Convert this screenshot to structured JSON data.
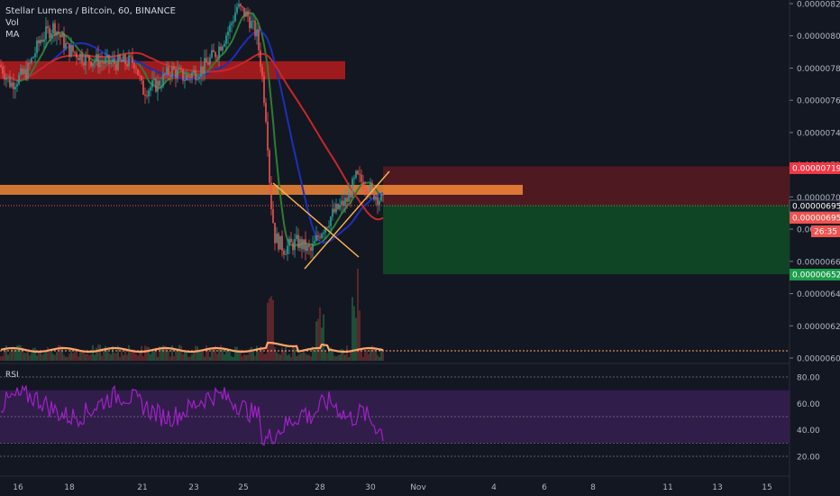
{
  "legend": {
    "title": "Stellar Lumens / Bitcoin, 60, BINANCE",
    "indicator_vol": "Vol",
    "indicator_ma": "MA",
    "rsi_label": "RSI"
  },
  "colors": {
    "background": "#131722",
    "candle_up": "#26a69a",
    "candle_down": "#ef5350",
    "ma_fast": "#2e7d32",
    "ma_mid": "#1e2fb8",
    "ma_slow": "#c62828",
    "resistance_zone": "#b71c1c",
    "support_zone": "#ff8f3a",
    "stop_zone": "#5a1a22",
    "target_zone": "#0f4a25",
    "volume_ma": "#ffa46b",
    "rsi_line": "#a020c8",
    "rsi_band": "#3a1f55",
    "current_price": "#ef5350",
    "target_tag": "#1b9e4b",
    "stop_tag": "#f23645",
    "axis_text": "#b2b5be"
  },
  "chart_data": [
    {
      "type": "candlestick",
      "title": "Stellar Lumens / Bitcoin, 60, BINANCE",
      "y_ticks": [
        "0.00000820",
        "0.00000800",
        "0.00000780",
        "0.00000760",
        "0.00000740",
        "0.00000720",
        "0.00000700",
        "0.00000680",
        "0.00000660",
        "0.00000640",
        "0.00000620",
        "0.00000600"
      ],
      "ylim": [
        6e-06,
        8.2e-06
      ],
      "x_ticks": [
        "16",
        "18",
        "21",
        "23",
        "25",
        "28",
        "30",
        "Nov",
        "4",
        "6",
        "8",
        "11",
        "13",
        "15"
      ],
      "price_path": [
        [
          7.82e-06,
          7.88e-06,
          7.7e-06,
          7.76e-06,
          7.83e-06,
          7.75e-06,
          7.7e-06,
          7.85e-06,
          8e-06,
          8.08e-06,
          7.96e-06,
          7.9e-06,
          7.92e-06,
          7.86e-06,
          7.88e-06,
          7.84e-06,
          7.8e-06,
          7.82e-06
        ],
        [
          7.86e-06,
          7.68e-06,
          7.7e-06,
          7.79e-06,
          7.74e-06,
          7.8e-06,
          7.84e-06,
          7.78e-06,
          7.76e-06,
          7.82e-06,
          7.86e-06,
          7.9e-06,
          7.95e-06,
          8.02e-06,
          8.1e-06,
          8.18e-06,
          8.12e-06,
          8.05e-06
        ]
      ],
      "price_path_tail": [
        8e-06,
        7.9e-06,
        7.8e-06,
        7.5e-06,
        7e-06,
        6.85e-06,
        6.77e-06,
        6.72e-06,
        6.75e-06,
        6.8e-06,
        6.68e-06,
        6.72e-06,
        6.8e-06,
        6.9e-06,
        6.95e-06,
        6.98e-06,
        7.02e-06,
        6.98e-06,
        7.15e-06,
        7.1e-06,
        7.05e-06,
        7e-06,
        6.95e-06
      ],
      "moving_averages": [
        {
          "name": "MA fast",
          "color": "#2e7d32"
        },
        {
          "name": "MA mid",
          "color": "#1e2fb8"
        },
        {
          "name": "MA slow",
          "color": "#c62828"
        }
      ],
      "zones": [
        {
          "name": "resistance",
          "low": 7.76e-06,
          "high": 7.82e-06
        },
        {
          "name": "support",
          "low": 7e-06,
          "high": 7.04e-06
        },
        {
          "name": "stop",
          "low": 6.95e-06,
          "high": 7.19e-06
        },
        {
          "name": "target",
          "low": 6.52e-06,
          "high": 6.95e-06
        }
      ],
      "price_tags": [
        {
          "label": "0.00000719",
          "kind": "stop"
        },
        {
          "label": "0.00000695",
          "kind": "entry"
        },
        {
          "label": "0.00000695",
          "kind": "current"
        },
        {
          "label": "26:35",
          "kind": "countdown"
        },
        {
          "label": "0.00000652",
          "kind": "target"
        }
      ]
    },
    {
      "type": "line",
      "title": "RSI",
      "y_ticks": [
        "80.00",
        "60.00",
        "40.00",
        "20.00"
      ],
      "ylim": [
        20,
        80
      ],
      "band": [
        30,
        70
      ],
      "mid": 50,
      "last_value": 38
    }
  ]
}
